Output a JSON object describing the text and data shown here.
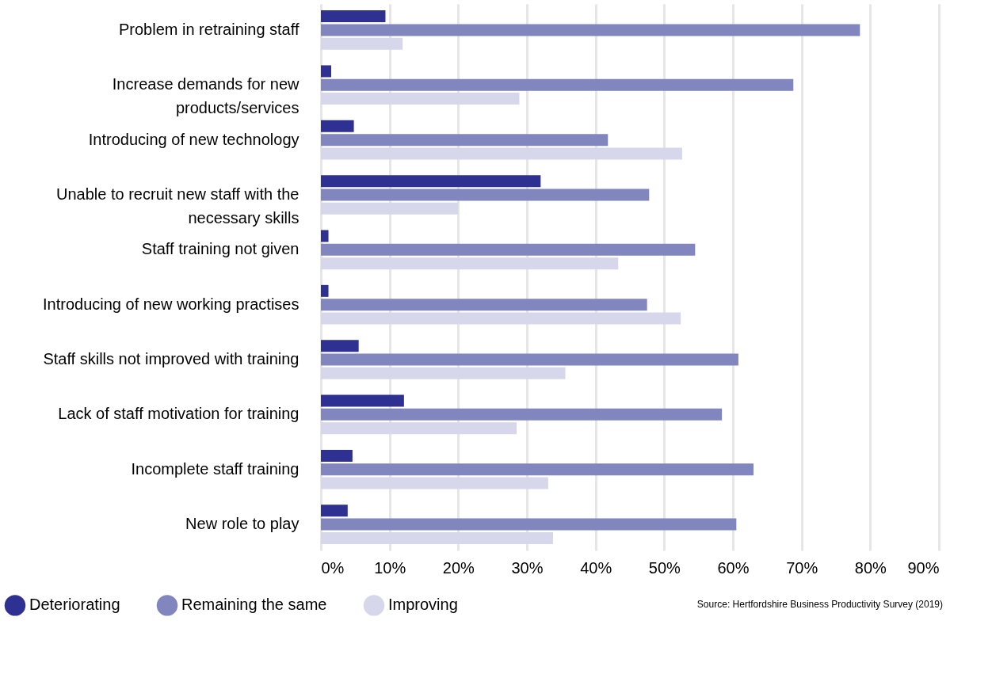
{
  "chart_data": {
    "type": "bar",
    "orientation": "horizontal",
    "categories": [
      "Problem in retraining staff",
      "Increase demands for new products/services",
      "Introducing of new technology",
      "Unable to recruit new staff with the necessary skills",
      "Staff training not given",
      "Introducing of new working practises",
      "Staff skills not improved with training",
      "Lack of staff motivation for training",
      "Incomplete staff training",
      "New role to play"
    ],
    "series": [
      {
        "name": "Deteriorating",
        "color": "#2e3192",
        "values": [
          9.4,
          1.5,
          4.8,
          32,
          1.1,
          1.1,
          5.5,
          12.1,
          4.6,
          3.9
        ]
      },
      {
        "name": "Remaining the same",
        "color": "#8286be",
        "values": [
          78.5,
          68.8,
          41.8,
          47.8,
          54.5,
          47.5,
          60.8,
          58.4,
          63,
          60.5
        ]
      },
      {
        "name": "Improving",
        "color": "#d6d7ea",
        "values": [
          11.9,
          28.9,
          52.6,
          20,
          43.3,
          52.4,
          35.6,
          28.5,
          33.1,
          33.8
        ]
      }
    ],
    "xlim": [
      0,
      90
    ],
    "xticks": [
      {
        "value": 0,
        "label": "0%"
      },
      {
        "value": 10,
        "label": "10%"
      },
      {
        "value": 20,
        "label": "20%"
      },
      {
        "value": 30,
        "label": "30%"
      },
      {
        "value": 40,
        "label": "40%"
      },
      {
        "value": 50,
        "label": "50%"
      },
      {
        "value": 60,
        "label": "60%"
      },
      {
        "value": 70,
        "label": "70%"
      },
      {
        "value": 80,
        "label": "80%"
      },
      {
        "value": 90,
        "label": "90%"
      }
    ],
    "grid": "x",
    "legend": "bottom left",
    "annotations": [
      "Source: Hertfordshire Business Productivity Survey (2019)"
    ]
  }
}
